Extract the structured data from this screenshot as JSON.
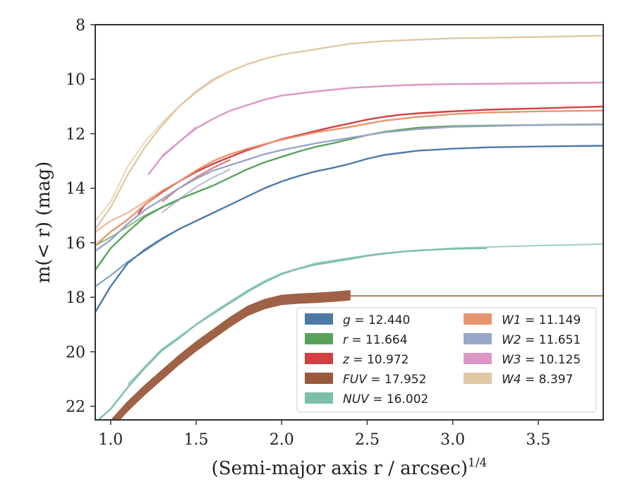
{
  "chart_data": {
    "type": "line",
    "xlabel": "(Semi-major axis r / arcsec)^{1/4}",
    "ylabel": "m(< r) (mag)",
    "xlim": [
      0.91,
      3.88
    ],
    "ylim": [
      22.5,
      8
    ],
    "y_inverted": true,
    "xticks": [
      "1.0",
      "1.5",
      "2.0",
      "2.5",
      "3.0",
      "3.5"
    ],
    "yticks": [
      "8",
      "10",
      "12",
      "14",
      "16",
      "18",
      "20",
      "22"
    ],
    "grid": false,
    "legend_position": "lower-right",
    "legend_columns": 2,
    "series": [
      {
        "name": "g = 12.440",
        "band": "g",
        "total_mag": "12.440",
        "color": "#4c7aa8",
        "points": [
          [
            0.91,
            18.55
          ],
          [
            1.0,
            17.6
          ],
          [
            1.1,
            16.75
          ],
          [
            1.2,
            16.25
          ],
          [
            1.3,
            15.85
          ],
          [
            1.4,
            15.5
          ],
          [
            1.5,
            15.2
          ],
          [
            1.6,
            14.9
          ],
          [
            1.7,
            14.6
          ],
          [
            1.8,
            14.3
          ],
          [
            1.9,
            14.0
          ],
          [
            2.0,
            13.75
          ],
          [
            2.1,
            13.55
          ],
          [
            2.2,
            13.38
          ],
          [
            2.3,
            13.25
          ],
          [
            2.4,
            13.1
          ],
          [
            2.5,
            12.92
          ],
          [
            2.6,
            12.78
          ],
          [
            2.7,
            12.7
          ],
          [
            2.8,
            12.62
          ],
          [
            3.0,
            12.55
          ],
          [
            3.2,
            12.5
          ],
          [
            3.5,
            12.47
          ],
          [
            3.88,
            12.44
          ]
        ],
        "alt_points": [
          [
            0.91,
            17.6
          ],
          [
            1.0,
            17.2
          ],
          [
            1.1,
            16.7
          ],
          [
            1.2,
            16.3
          ],
          [
            1.3,
            15.88
          ],
          [
            1.4,
            15.5
          ]
        ]
      },
      {
        "name": "r = 11.664",
        "band": "r",
        "total_mag": "11.664",
        "color": "#5aa25a",
        "points": [
          [
            0.91,
            17.0
          ],
          [
            1.0,
            16.2
          ],
          [
            1.1,
            15.6
          ],
          [
            1.2,
            15.05
          ],
          [
            1.3,
            14.7
          ],
          [
            1.4,
            14.4
          ],
          [
            1.5,
            14.15
          ],
          [
            1.6,
            13.9
          ],
          [
            1.7,
            13.6
          ],
          [
            1.8,
            13.3
          ],
          [
            1.9,
            13.05
          ],
          [
            2.0,
            12.85
          ],
          [
            2.1,
            12.65
          ],
          [
            2.2,
            12.48
          ],
          [
            2.3,
            12.35
          ],
          [
            2.4,
            12.2
          ],
          [
            2.5,
            12.05
          ],
          [
            2.6,
            11.93
          ],
          [
            2.7,
            11.85
          ],
          [
            2.8,
            11.78
          ],
          [
            3.0,
            11.72
          ],
          [
            3.2,
            11.7
          ],
          [
            3.5,
            11.68
          ],
          [
            3.88,
            11.66
          ]
        ],
        "alt_points": [
          [
            0.91,
            16.1
          ],
          [
            1.0,
            15.8
          ],
          [
            1.1,
            15.4
          ],
          [
            1.2,
            15.0
          ],
          [
            1.3,
            14.7
          ],
          [
            1.4,
            14.45
          ]
        ]
      },
      {
        "name": "z = 10.972",
        "band": "z",
        "total_mag": "10.972",
        "color": "#d14040",
        "points": [
          [
            1.16,
            14.95
          ],
          [
            1.2,
            14.6
          ],
          [
            1.3,
            14.15
          ],
          [
            1.4,
            13.75
          ],
          [
            1.5,
            13.4
          ],
          [
            1.6,
            13.1
          ],
          [
            1.7,
            12.85
          ],
          [
            1.8,
            12.6
          ],
          [
            1.9,
            12.4
          ],
          [
            2.0,
            12.2
          ],
          [
            2.1,
            12.05
          ],
          [
            2.2,
            11.9
          ],
          [
            2.3,
            11.75
          ],
          [
            2.4,
            11.62
          ],
          [
            2.5,
            11.48
          ],
          [
            2.6,
            11.38
          ],
          [
            2.7,
            11.3
          ],
          [
            2.8,
            11.25
          ],
          [
            3.0,
            11.18
          ],
          [
            3.2,
            11.12
          ],
          [
            3.5,
            11.07
          ],
          [
            3.88,
            11.0
          ]
        ],
        "alt_points": [
          [
            1.3,
            14.5
          ],
          [
            1.4,
            14.0
          ],
          [
            1.5,
            13.6
          ],
          [
            1.6,
            13.25
          ],
          [
            1.7,
            12.95
          ]
        ]
      },
      {
        "name": "FUV = 17.952",
        "band": "FUV",
        "total_mag": "17.952",
        "color": "#9b5a3c",
        "band_width": 0.35,
        "points": [
          [
            0.97,
            22.9
          ],
          [
            1.1,
            22.0
          ],
          [
            1.2,
            21.4
          ],
          [
            1.3,
            20.85
          ],
          [
            1.4,
            20.3
          ],
          [
            1.5,
            19.8
          ],
          [
            1.6,
            19.35
          ],
          [
            1.7,
            18.9
          ],
          [
            1.8,
            18.5
          ],
          [
            1.9,
            18.25
          ],
          [
            2.0,
            18.1
          ],
          [
            2.1,
            18.05
          ],
          [
            2.2,
            18.02
          ],
          [
            2.3,
            17.98
          ],
          [
            2.4,
            17.93
          ]
        ],
        "ext_points": [
          [
            2.4,
            17.95
          ],
          [
            3.0,
            17.95
          ],
          [
            3.88,
            17.95
          ]
        ]
      },
      {
        "name": "NUV = 16.002",
        "band": "NUV",
        "total_mag": "16.002",
        "color": "#7cbfa8",
        "points": [
          [
            0.91,
            22.6
          ],
          [
            1.0,
            22.1
          ],
          [
            1.1,
            21.3
          ],
          [
            1.2,
            20.6
          ],
          [
            1.3,
            19.95
          ],
          [
            1.4,
            19.5
          ],
          [
            1.5,
            19.0
          ],
          [
            1.6,
            18.6
          ],
          [
            1.7,
            18.2
          ],
          [
            1.8,
            17.8
          ],
          [
            1.9,
            17.45
          ],
          [
            2.0,
            17.15
          ],
          [
            2.1,
            16.95
          ],
          [
            2.2,
            16.8
          ],
          [
            2.3,
            16.7
          ],
          [
            2.4,
            16.6
          ],
          [
            2.5,
            16.48
          ],
          [
            2.6,
            16.4
          ],
          [
            2.7,
            16.33
          ],
          [
            2.8,
            16.28
          ],
          [
            3.0,
            16.22
          ],
          [
            3.2,
            16.2
          ]
        ],
        "alt_points": [
          [
            1.1,
            21.2
          ],
          [
            1.2,
            20.55
          ],
          [
            1.3,
            19.9
          ],
          [
            1.4,
            19.45
          ],
          [
            1.5,
            19.0
          ],
          [
            1.6,
            18.55
          ],
          [
            1.7,
            18.15
          ],
          [
            1.8,
            17.75
          ],
          [
            1.9,
            17.4
          ],
          [
            2.0,
            17.12
          ],
          [
            2.2,
            16.75
          ],
          [
            2.4,
            16.55
          ],
          [
            2.6,
            16.38
          ],
          [
            3.0,
            16.2
          ],
          [
            3.4,
            16.12
          ],
          [
            3.88,
            16.05
          ]
        ]
      },
      {
        "name": "W1 = 11.149",
        "band": "W1",
        "total_mag": "11.149",
        "color": "#e8956f",
        "points": [
          [
            0.91,
            16.1
          ],
          [
            1.0,
            15.6
          ],
          [
            1.1,
            15.15
          ],
          [
            1.2,
            14.6
          ],
          [
            1.3,
            14.1
          ],
          [
            1.4,
            13.75
          ],
          [
            1.5,
            13.35
          ],
          [
            1.6,
            13.0
          ],
          [
            1.7,
            12.75
          ],
          [
            1.8,
            12.55
          ],
          [
            1.9,
            12.38
          ],
          [
            2.0,
            12.22
          ],
          [
            2.2,
            11.95
          ],
          [
            2.4,
            11.75
          ],
          [
            2.6,
            11.52
          ],
          [
            2.8,
            11.38
          ],
          [
            3.0,
            11.28
          ],
          [
            3.2,
            11.22
          ],
          [
            3.5,
            11.18
          ],
          [
            3.88,
            11.15
          ]
        ],
        "alt_points": [
          [
            0.91,
            15.6
          ],
          [
            1.0,
            15.2
          ],
          [
            1.1,
            14.9
          ],
          [
            1.2,
            14.5
          ],
          [
            1.3,
            14.1
          ]
        ]
      },
      {
        "name": "W2 = 11.651",
        "band": "W2",
        "total_mag": "11.651",
        "color": "#98a6c8",
        "points": [
          [
            0.91,
            16.3
          ],
          [
            1.0,
            15.9
          ],
          [
            1.1,
            15.3
          ],
          [
            1.2,
            14.8
          ],
          [
            1.3,
            14.4
          ],
          [
            1.4,
            14.0
          ],
          [
            1.5,
            13.65
          ],
          [
            1.6,
            13.35
          ],
          [
            1.7,
            13.15
          ],
          [
            1.8,
            12.95
          ],
          [
            1.9,
            12.75
          ],
          [
            2.0,
            12.6
          ],
          [
            2.2,
            12.35
          ],
          [
            2.4,
            12.15
          ],
          [
            2.6,
            11.95
          ],
          [
            2.8,
            11.83
          ],
          [
            3.0,
            11.75
          ],
          [
            3.2,
            11.72
          ],
          [
            3.5,
            11.68
          ],
          [
            3.88,
            11.65
          ]
        ],
        "alt_points": [
          [
            1.3,
            14.9
          ],
          [
            1.4,
            14.4
          ],
          [
            1.5,
            13.95
          ],
          [
            1.6,
            13.6
          ],
          [
            1.7,
            13.3
          ]
        ]
      },
      {
        "name": "W3 = 10.125",
        "band": "W3",
        "total_mag": "10.125",
        "color": "#dd96c6",
        "points": [
          [
            1.22,
            13.5
          ],
          [
            1.3,
            12.85
          ],
          [
            1.4,
            12.3
          ],
          [
            1.5,
            11.8
          ],
          [
            1.6,
            11.45
          ],
          [
            1.7,
            11.15
          ],
          [
            1.8,
            10.95
          ],
          [
            1.9,
            10.75
          ],
          [
            2.0,
            10.6
          ],
          [
            2.2,
            10.45
          ],
          [
            2.4,
            10.32
          ],
          [
            2.6,
            10.25
          ],
          [
            2.8,
            10.2
          ],
          [
            3.0,
            10.18
          ],
          [
            3.5,
            10.15
          ],
          [
            3.88,
            10.12
          ]
        ],
        "alt_points": [
          [
            1.3,
            12.8
          ],
          [
            1.4,
            12.3
          ],
          [
            1.5,
            11.75
          ]
        ]
      },
      {
        "name": "W4 = 8.397",
        "band": "W4",
        "total_mag": "8.397",
        "color": "#e0c8a4",
        "points": [
          [
            0.91,
            15.5
          ],
          [
            1.0,
            14.7
          ],
          [
            1.1,
            13.5
          ],
          [
            1.2,
            12.5
          ],
          [
            1.3,
            11.7
          ],
          [
            1.4,
            11.0
          ],
          [
            1.5,
            10.45
          ],
          [
            1.6,
            10.0
          ],
          [
            1.7,
            9.7
          ],
          [
            1.8,
            9.45
          ],
          [
            1.9,
            9.25
          ],
          [
            2.0,
            9.1
          ],
          [
            2.2,
            8.9
          ],
          [
            2.4,
            8.7
          ],
          [
            2.6,
            8.6
          ],
          [
            2.8,
            8.55
          ],
          [
            3.0,
            8.5
          ],
          [
            3.5,
            8.45
          ],
          [
            3.88,
            8.4
          ]
        ],
        "alt_points": [
          [
            0.91,
            15.2
          ],
          [
            1.0,
            14.5
          ],
          [
            1.1,
            13.2
          ],
          [
            1.2,
            12.3
          ],
          [
            1.3,
            11.6
          ],
          [
            1.4,
            11.0
          ],
          [
            1.5,
            10.5
          ],
          [
            1.6,
            10.05
          ],
          [
            1.7,
            9.7
          ]
        ]
      }
    ]
  }
}
